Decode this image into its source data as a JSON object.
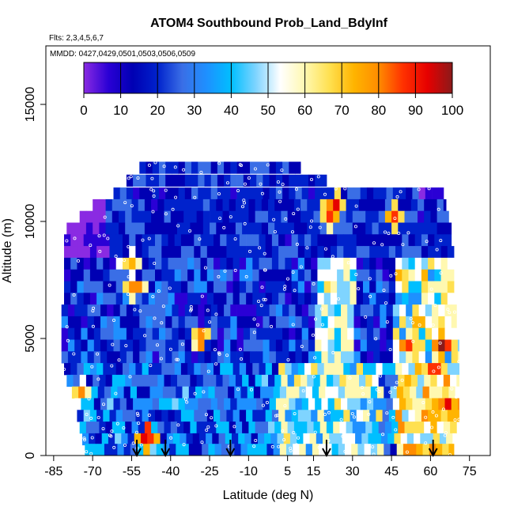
{
  "chart_data": {
    "type": "heatmap",
    "title": "ATOM4 Southbound Prob_Land_BdyInf",
    "subtitle_flights": "Flts: 2,3,4,5,6,7",
    "subtitle_dates": "MMDD: 0427,0429,0501,0503,0506,0509",
    "xlabel": "Latitude (deg N)",
    "ylabel": "Altitude (m)",
    "xlim": [
      -88,
      83
    ],
    "ylim": [
      0,
      17500
    ],
    "x_ticks": [
      -85,
      -70,
      -55,
      -40,
      -25,
      -10,
      5,
      15,
      30,
      45,
      60,
      75
    ],
    "x_tick_labels": [
      "-85",
      "-70",
      "-55",
      "-40",
      "-25",
      "-10",
      "5",
      "15",
      "30",
      "45",
      "60",
      "75"
    ],
    "y_ticks": [
      0,
      5000,
      10000,
      15000
    ],
    "y_tick_labels": [
      "0",
      "5000",
      "10000",
      "15000"
    ],
    "colorbar": {
      "min": 0,
      "max": 100,
      "tick_values": [
        0,
        10,
        20,
        30,
        40,
        50,
        60,
        70,
        80,
        90,
        100
      ],
      "tick_labels": [
        "0",
        "10",
        "20",
        "30",
        "40",
        "50",
        "60",
        "70",
        "80",
        "90",
        "100"
      ],
      "colors": [
        "#8a2be2",
        "#2a00d5",
        "#0000b3",
        "#0022cc",
        "#3a6ee6",
        "#1e90ff",
        "#00bfff",
        "#7fd4ff",
        "#ffffff",
        "#fff8b0",
        "#ffe050",
        "#ffb400",
        "#ff8c00",
        "#ff3000",
        "#e60000",
        "#8b1a1a"
      ]
    },
    "rows": [
      {
        "alt": 12300,
        "lat0": -52,
        "lat1": 10,
        "band": "upper"
      },
      {
        "alt": 11750,
        "lat0": -57,
        "lat1": 20,
        "band": "upper"
      },
      {
        "alt": 11200,
        "lat0": -62,
        "lat1": 65,
        "band": "upper"
      },
      {
        "alt": 10700,
        "lat0": -70,
        "lat1": 66,
        "band": "upper"
      },
      {
        "alt": 10200,
        "lat0": -75,
        "lat1": 67,
        "band": "upper"
      },
      {
        "alt": 9700,
        "lat0": -80,
        "lat1": 68,
        "band": "upper"
      },
      {
        "alt": 9200,
        "lat0": -81,
        "lat1": 68,
        "band": "upper"
      },
      {
        "alt": 8700,
        "lat0": -81,
        "lat1": 69,
        "band": "upper"
      },
      {
        "alt": 8200,
        "lat0": -81,
        "lat1": 69,
        "band": "mid"
      },
      {
        "alt": 7700,
        "lat0": -81,
        "lat1": 69,
        "band": "mid"
      },
      {
        "alt": 7200,
        "lat0": -81,
        "lat1": 69,
        "band": "mid"
      },
      {
        "alt": 6700,
        "lat0": -81,
        "lat1": 69,
        "band": "mid"
      },
      {
        "alt": 6200,
        "lat0": -82,
        "lat1": 70,
        "band": "mid"
      },
      {
        "alt": 5700,
        "lat0": -82,
        "lat1": 70,
        "band": "mid"
      },
      {
        "alt": 5200,
        "lat0": -82,
        "lat1": 70,
        "band": "mid"
      },
      {
        "alt": 4700,
        "lat0": -82,
        "lat1": 71,
        "band": "mid"
      },
      {
        "alt": 4200,
        "lat0": -82,
        "lat1": 71,
        "band": "mid"
      },
      {
        "alt": 3700,
        "lat0": -81,
        "lat1": 71,
        "band": "low"
      },
      {
        "alt": 3200,
        "lat0": -80,
        "lat1": 71,
        "band": "low"
      },
      {
        "alt": 2700,
        "lat0": -78,
        "lat1": 71,
        "band": "low"
      },
      {
        "alt": 2200,
        "lat0": -77,
        "lat1": 71,
        "band": "low"
      },
      {
        "alt": 1700,
        "lat0": -76,
        "lat1": 71,
        "band": "low"
      },
      {
        "alt": 1200,
        "lat0": -75,
        "lat1": 70,
        "band": "low"
      },
      {
        "alt": 700,
        "lat0": -74,
        "lat1": 70,
        "band": "low"
      },
      {
        "alt": 250,
        "lat0": -73,
        "lat1": 69,
        "band": "low"
      }
    ],
    "hot_spots": [
      {
        "lat": -50,
        "alt": 800,
        "value": 95
      },
      {
        "lat": -30,
        "alt": 5000,
        "value": 85
      },
      {
        "lat": -55,
        "alt": 7200,
        "value": 80
      },
      {
        "lat": -57,
        "alt": 8200,
        "value": 75
      },
      {
        "lat": -76,
        "alt": 2700,
        "value": 75
      },
      {
        "lat": 20,
        "alt": 10200,
        "value": 80
      },
      {
        "lat": 22,
        "alt": 10700,
        "value": 85
      },
      {
        "lat": 45,
        "alt": 10200,
        "value": 80
      },
      {
        "lat": 63,
        "alt": 4700,
        "value": 90
      },
      {
        "lat": 60,
        "alt": 3700,
        "value": 85
      },
      {
        "lat": 65,
        "alt": 2200,
        "value": 90
      },
      {
        "lat": 60,
        "alt": 1700,
        "value": 75
      },
      {
        "lat": 50,
        "alt": 4700,
        "value": 80
      }
    ],
    "arrows_lat": [
      -53,
      -42,
      -17,
      20,
      61
    ],
    "series": [
      {
        "values": []
      }
    ]
  }
}
